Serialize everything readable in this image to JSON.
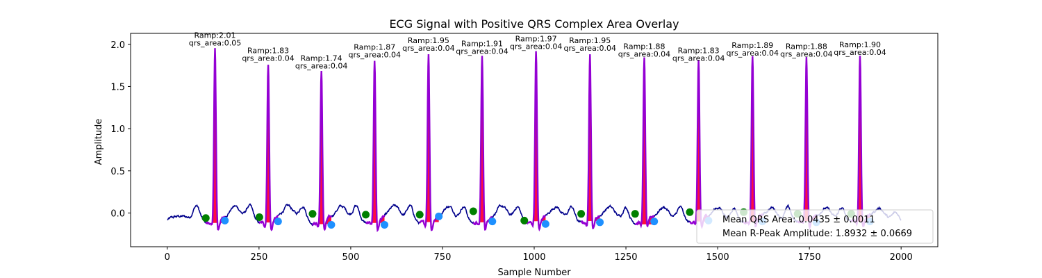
{
  "chart_data": {
    "type": "line",
    "title": "ECG Signal with Positive QRS Complex Area Overlay",
    "xlabel": "Sample Number",
    "ylabel": "Amplitude",
    "xlim": [
      -100,
      2100
    ],
    "ylim": [
      -0.4,
      2.13
    ],
    "xticks": [
      0,
      250,
      500,
      750,
      1000,
      1250,
      1500,
      1750,
      2000
    ],
    "yticks": [
      0.0,
      0.5,
      1.0,
      1.5,
      2.0
    ],
    "xtick_labels": [
      "0",
      "250",
      "500",
      "750",
      "1000",
      "1250",
      "1500",
      "1750",
      "2000"
    ],
    "ytick_labels": [
      "0.0",
      "0.5",
      "1.0",
      "1.5",
      "2.0"
    ],
    "grid": false,
    "colors": {
      "signal": "#00008b",
      "qrs_line": "#9400d3",
      "qrs_area": "#ff0033",
      "onset_marker": "#008000",
      "offset_marker": "#1e90ff"
    },
    "beats": [
      {
        "r_x": 130,
        "r_amp": 2.01,
        "onset_x": 105,
        "onset_y": -0.06,
        "offset_x": 157,
        "offset_y": -0.09,
        "label_amp": "Ramp:2.01",
        "label_area": "qrs_area:0.05"
      },
      {
        "r_x": 275,
        "r_amp": 1.83,
        "onset_x": 251,
        "onset_y": -0.05,
        "offset_x": 302,
        "offset_y": -0.1,
        "label_amp": "Ramp:1.83",
        "label_area": "qrs_area:0.04"
      },
      {
        "r_x": 420,
        "r_amp": 1.74,
        "onset_x": 396,
        "onset_y": -0.01,
        "offset_x": 447,
        "offset_y": -0.14,
        "label_amp": "Ramp:1.74",
        "label_area": "qrs_area:0.04"
      },
      {
        "r_x": 565,
        "r_amp": 1.87,
        "onset_x": 541,
        "onset_y": -0.02,
        "offset_x": 592,
        "offset_y": -0.14,
        "label_amp": "Ramp:1.87",
        "label_area": "qrs_area:0.04"
      },
      {
        "r_x": 712,
        "r_amp": 1.95,
        "onset_x": 688,
        "onset_y": -0.02,
        "offset_x": 740,
        "offset_y": -0.04,
        "label_amp": "Ramp:1.95",
        "label_area": "qrs_area:0.04"
      },
      {
        "r_x": 858,
        "r_amp": 1.91,
        "onset_x": 834,
        "onset_y": 0.02,
        "offset_x": 886,
        "offset_y": -0.1,
        "label_amp": "Ramp:1.91",
        "label_area": "qrs_area:0.04"
      },
      {
        "r_x": 1005,
        "r_amp": 1.97,
        "onset_x": 973,
        "onset_y": -0.09,
        "offset_x": 1031,
        "offset_y": -0.13,
        "label_amp": "Ramp:1.97",
        "label_area": "qrs_area:0.04"
      },
      {
        "r_x": 1152,
        "r_amp": 1.95,
        "onset_x": 1128,
        "onset_y": -0.01,
        "offset_x": 1179,
        "offset_y": -0.11,
        "label_amp": "Ramp:1.95",
        "label_area": "qrs_area:0.04"
      },
      {
        "r_x": 1300,
        "r_amp": 1.88,
        "onset_x": 1275,
        "onset_y": -0.01,
        "offset_x": 1327,
        "offset_y": -0.1,
        "label_amp": "Ramp:1.88",
        "label_area": "qrs_area:0.04"
      },
      {
        "r_x": 1448,
        "r_amp": 1.83,
        "onset_x": 1424,
        "onset_y": 0.01,
        "offset_x": 1475,
        "offset_y": -0.09,
        "label_amp": "Ramp:1.83",
        "label_area": "qrs_area:0.04"
      },
      {
        "r_x": 1595,
        "r_amp": 1.89,
        "onset_x": 1571,
        "onset_y": 0.01,
        "offset_x": 1622,
        "offset_y": -0.1,
        "label_amp": "Ramp:1.89",
        "label_area": "qrs_area:0.04"
      },
      {
        "r_x": 1742,
        "r_amp": 1.88,
        "onset_x": 1718,
        "onset_y": -0.01,
        "offset_x": 1769,
        "offset_y": -0.11,
        "label_amp": "Ramp:1.88",
        "label_area": "qrs_area:0.04"
      },
      {
        "r_x": 1888,
        "r_amp": 1.9,
        "onset_x": 1864,
        "onset_y": -0.01,
        "offset_x": 1915,
        "offset_y": -0.1,
        "label_amp": "Ramp:1.90",
        "label_area": "qrs_area:0.04"
      }
    ],
    "legend": {
      "placement": "lower-right",
      "entries": [
        "Mean QRS Area: 0.0435 ± 0.0011",
        "Mean R-Peak Amplitude: 1.8932 ± 0.0669"
      ]
    }
  }
}
